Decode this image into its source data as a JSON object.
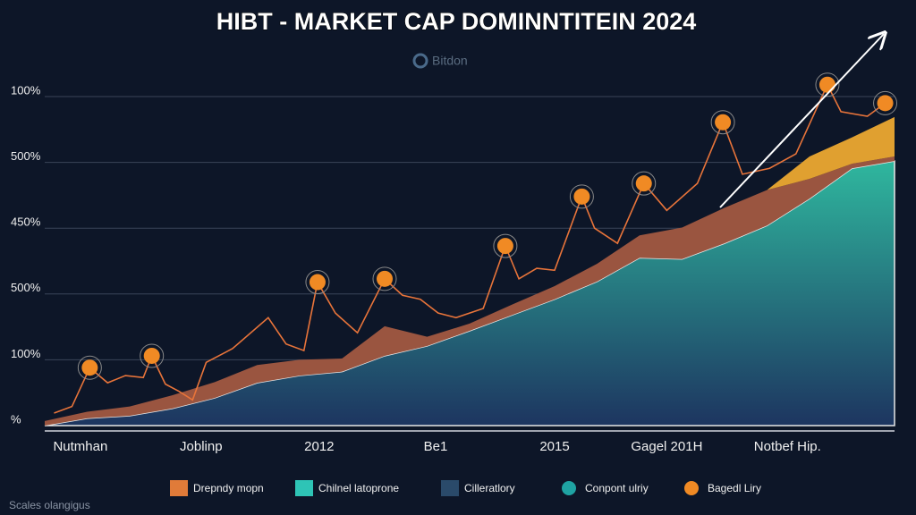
{
  "chart_data": {
    "type": "area",
    "title": "HIBT - MARKET CAP DOMINNTITEIN 2024",
    "watermark": "Bitdon",
    "footer": "Scales olangigus",
    "grid": true,
    "xlim": [
      0,
      100
    ],
    "ylim": [
      0,
      5
    ],
    "yticks": [
      {
        "value": 0,
        "label": "%"
      },
      {
        "value": 1,
        "label": "100%"
      },
      {
        "value": 2,
        "label": "500%"
      },
      {
        "value": 3,
        "label": "450%"
      },
      {
        "value": 4,
        "label": "500%"
      },
      {
        "value": 5,
        "label": "100%"
      }
    ],
    "xticks": [
      {
        "value": 4.2,
        "label": "Nutmhan"
      },
      {
        "value": 18.4,
        "label": "Joblinp"
      },
      {
        "value": 32.3,
        "label": "2012"
      },
      {
        "value": 46,
        "label": "Be1"
      },
      {
        "value": 60,
        "label": "2015"
      },
      {
        "value": 73.2,
        "label": "Gagel 201H"
      },
      {
        "value": 87.4,
        "label": "Notbef Hip."
      }
    ],
    "x": [
      0,
      5,
      10,
      15,
      20,
      25,
      30,
      35,
      40,
      45,
      50,
      55,
      60,
      65,
      70,
      75,
      80,
      85,
      90,
      95,
      100
    ],
    "series": [
      {
        "color": "#2aa394",
        "values": [
          0,
          0.11,
          0.15,
          0.26,
          0.42,
          0.65,
          0.76,
          0.82,
          1.06,
          1.21,
          1.44,
          1.68,
          1.92,
          2.19,
          2.55,
          2.53,
          2.77,
          3.04,
          3.45,
          3.91,
          4.02
        ]
      },
      {
        "color": "#9a5540",
        "values": [
          0.07,
          0.1,
          0.14,
          0.2,
          0.24,
          0.27,
          0.24,
          0.2,
          0.45,
          0.14,
          0.11,
          0.16,
          0.2,
          0.27,
          0.34,
          0.48,
          0.54,
          0.54,
          0.3,
          0.07,
          0.07
        ]
      },
      {
        "color": "#e0a030",
        "values": [
          0,
          0,
          0,
          0,
          0,
          0,
          0,
          0,
          0,
          0,
          0,
          0,
          0,
          0,
          0,
          0,
          0,
          0,
          0.34,
          0.4,
          0.6
        ]
      }
    ],
    "line": {
      "color": "#e8743a",
      "x": [
        1.1,
        3.2,
        5.3,
        7.4,
        9.5,
        11.6,
        12.6,
        14.2,
        15.8,
        17.4,
        19,
        22.1,
        26.3,
        28.4,
        30.5,
        32.1,
        34.2,
        36.8,
        40,
        42.1,
        44.2,
        46.3,
        48.4,
        51.6,
        54.2,
        55.8,
        57.9,
        60,
        63.2,
        64.7,
        67.4,
        70.5,
        73.2,
        76.8,
        79.8,
        82.1,
        85.3,
        88.4,
        92.1,
        93.7,
        96.8,
        98.9
      ],
      "values": [
        0.19,
        0.29,
        0.88,
        0.65,
        0.76,
        0.73,
        1.06,
        0.63,
        0.52,
        0.39,
        0.96,
        1.17,
        1.64,
        1.24,
        1.14,
        2.18,
        1.71,
        1.41,
        2.23,
        1.98,
        1.92,
        1.71,
        1.64,
        1.78,
        2.73,
        2.23,
        2.39,
        2.36,
        3.48,
        3.0,
        2.77,
        3.68,
        3.27,
        3.68,
        4.61,
        3.82,
        3.91,
        4.13,
        5.18,
        4.77,
        4.7,
        4.9
      ]
    },
    "markers": {
      "color": "#f08a24",
      "x": [
        5.3,
        12.6,
        32.1,
        40,
        54.2,
        63.2,
        70.5,
        79.8,
        92.1,
        98.9
      ],
      "values": [
        0.88,
        1.06,
        2.18,
        2.23,
        2.73,
        3.48,
        3.68,
        4.61,
        5.18,
        4.9
      ]
    },
    "legend": [
      {
        "label": "Drepndy mopn",
        "color": "#e07b39",
        "shape": "square"
      },
      {
        "label": "Chilnel latoprone",
        "color": "#2ec4b6",
        "shape": "square"
      },
      {
        "label": "Cilleratlory",
        "color": "#2a4a6a",
        "shape": "square"
      },
      {
        "label": "Conpont ulriy",
        "color": "#1fa3a3",
        "shape": "circle"
      },
      {
        "label": "Bagedl Liry",
        "color": "#f08a24",
        "shape": "circle"
      }
    ]
  }
}
